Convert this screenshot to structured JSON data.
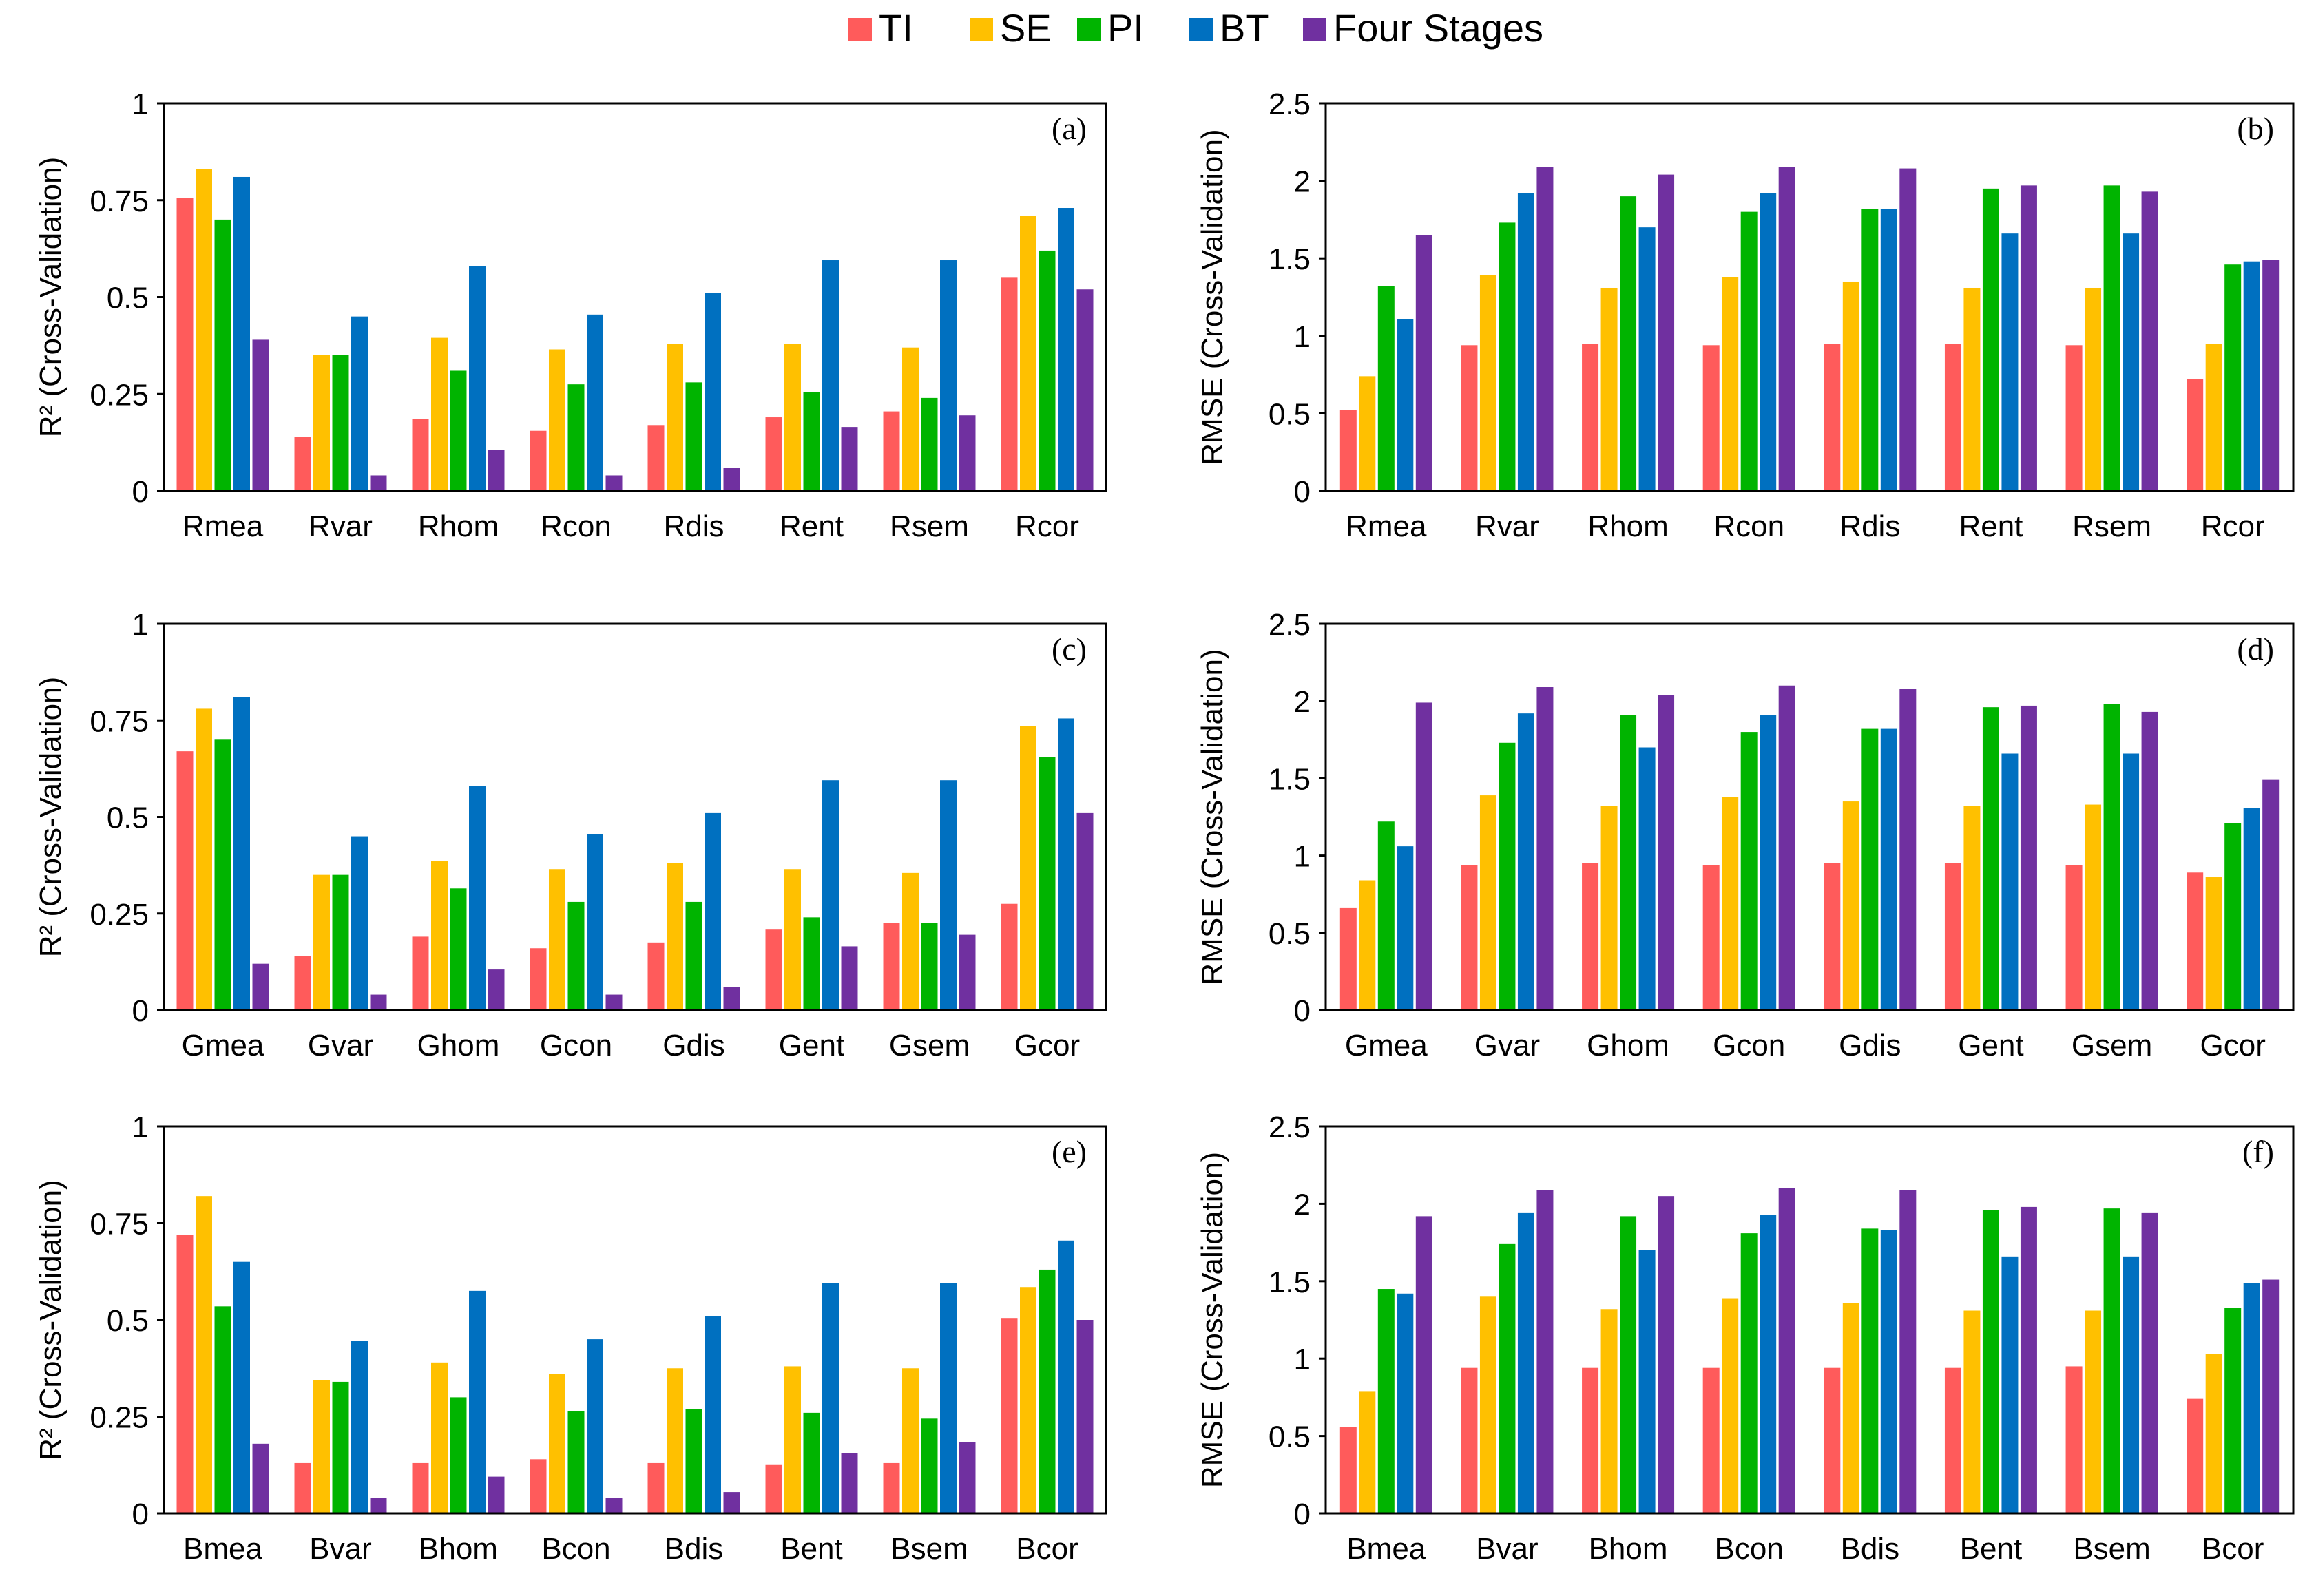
{
  "legend": {
    "placement": "top-center",
    "items": [
      {
        "label": "TI",
        "color": "#FF5B5B"
      },
      {
        "label": "SE",
        "color": "#FFC000"
      },
      {
        "label": "PI",
        "color": "#00B400"
      },
      {
        "label": "BT",
        "color": "#0070C0"
      },
      {
        "label": "Four Stages",
        "color": "#7030A0"
      }
    ]
  },
  "chart_data": [
    {
      "type": "bar",
      "panel_label": "(a)",
      "ylabel": "R² (Cross-Validation)",
      "ylim": [
        0,
        1
      ],
      "yticks": [
        0,
        0.25,
        0.5,
        0.75,
        1
      ],
      "ytick_labels": [
        "0",
        "0.25",
        "0.5",
        "0.75",
        "1"
      ],
      "categories": [
        "Rmea",
        "Rvar",
        "Rhom",
        "Rcon",
        "Rdis",
        "Rent",
        "Rsem",
        "Rcor"
      ],
      "series": [
        {
          "name": "TI",
          "values": [
            0.755,
            0.14,
            0.185,
            0.155,
            0.17,
            0.19,
            0.205,
            0.55
          ]
        },
        {
          "name": "SE",
          "values": [
            0.83,
            0.35,
            0.395,
            0.365,
            0.38,
            0.38,
            0.37,
            0.71
          ]
        },
        {
          "name": "PI",
          "values": [
            0.7,
            0.35,
            0.31,
            0.275,
            0.28,
            0.255,
            0.24,
            0.62
          ]
        },
        {
          "name": "BT",
          "values": [
            0.81,
            0.45,
            0.58,
            0.455,
            0.51,
            0.595,
            0.595,
            0.73
          ]
        },
        {
          "name": "Four Stages",
          "values": [
            0.39,
            0.04,
            0.105,
            0.04,
            0.06,
            0.165,
            0.195,
            0.52
          ]
        }
      ]
    },
    {
      "type": "bar",
      "panel_label": "(b)",
      "ylabel": "RMSE (Cross-Validation)",
      "ylim": [
        0,
        2.5
      ],
      "yticks": [
        0,
        0.5,
        1,
        1.5,
        2,
        2.5
      ],
      "ytick_labels": [
        "0",
        "0.5",
        "1",
        "1.5",
        "2",
        "2.5"
      ],
      "categories": [
        "Rmea",
        "Rvar",
        "Rhom",
        "Rcon",
        "Rdis",
        "Rent",
        "Rsem",
        "Rcor"
      ],
      "series": [
        {
          "name": "TI",
          "values": [
            0.52,
            0.94,
            0.95,
            0.94,
            0.95,
            0.95,
            0.94,
            0.72
          ]
        },
        {
          "name": "SE",
          "values": [
            0.74,
            1.39,
            1.31,
            1.38,
            1.35,
            1.31,
            1.31,
            0.95
          ]
        },
        {
          "name": "PI",
          "values": [
            1.32,
            1.73,
            1.9,
            1.8,
            1.82,
            1.95,
            1.97,
            1.46
          ]
        },
        {
          "name": "BT",
          "values": [
            1.11,
            1.92,
            1.7,
            1.92,
            1.82,
            1.66,
            1.66,
            1.48
          ]
        },
        {
          "name": "Four Stages",
          "values": [
            1.65,
            2.09,
            2.04,
            2.09,
            2.08,
            1.97,
            1.93,
            1.49
          ]
        }
      ]
    },
    {
      "type": "bar",
      "panel_label": "(c)",
      "ylabel": "R² (Cross-Validation)",
      "ylim": [
        0,
        1
      ],
      "yticks": [
        0,
        0.25,
        0.5,
        0.75,
        1
      ],
      "ytick_labels": [
        "0",
        "0.25",
        "0.5",
        "0.75",
        "1"
      ],
      "categories": [
        "Gmea",
        "Gvar",
        "Ghom",
        "Gcon",
        "Gdis",
        "Gent",
        "Gsem",
        "Gcor"
      ],
      "series": [
        {
          "name": "TI",
          "values": [
            0.67,
            0.14,
            0.19,
            0.16,
            0.175,
            0.21,
            0.225,
            0.275
          ]
        },
        {
          "name": "SE",
          "values": [
            0.78,
            0.35,
            0.385,
            0.365,
            0.38,
            0.365,
            0.355,
            0.735
          ]
        },
        {
          "name": "PI",
          "values": [
            0.7,
            0.35,
            0.315,
            0.28,
            0.28,
            0.24,
            0.225,
            0.655
          ]
        },
        {
          "name": "BT",
          "values": [
            0.81,
            0.45,
            0.58,
            0.455,
            0.51,
            0.595,
            0.595,
            0.755
          ]
        },
        {
          "name": "Four Stages",
          "values": [
            0.12,
            0.04,
            0.105,
            0.04,
            0.06,
            0.165,
            0.195,
            0.51
          ]
        }
      ]
    },
    {
      "type": "bar",
      "panel_label": "(d)",
      "ylabel": "RMSE (Cross-Validation)",
      "ylim": [
        0,
        2.5
      ],
      "yticks": [
        0,
        0.5,
        1,
        1.5,
        2,
        2.5
      ],
      "ytick_labels": [
        "0",
        "0.5",
        "1",
        "1.5",
        "2",
        "2.5"
      ],
      "categories": [
        "Gmea",
        "Gvar",
        "Ghom",
        "Gcon",
        "Gdis",
        "Gent",
        "Gsem",
        "Gcor"
      ],
      "series": [
        {
          "name": "TI",
          "values": [
            0.66,
            0.94,
            0.95,
            0.94,
            0.95,
            0.95,
            0.94,
            0.89
          ]
        },
        {
          "name": "SE",
          "values": [
            0.84,
            1.39,
            1.32,
            1.38,
            1.35,
            1.32,
            1.33,
            0.86
          ]
        },
        {
          "name": "PI",
          "values": [
            1.22,
            1.73,
            1.91,
            1.8,
            1.82,
            1.96,
            1.98,
            1.21
          ]
        },
        {
          "name": "BT",
          "values": [
            1.06,
            1.92,
            1.7,
            1.91,
            1.82,
            1.66,
            1.66,
            1.31
          ]
        },
        {
          "name": "Four Stages",
          "values": [
            1.99,
            2.09,
            2.04,
            2.1,
            2.08,
            1.97,
            1.93,
            1.49
          ]
        }
      ]
    },
    {
      "type": "bar",
      "panel_label": "(e)",
      "ylabel": "R² (Cross-Validation)",
      "ylim": [
        0,
        1
      ],
      "yticks": [
        0,
        0.25,
        0.5,
        0.75,
        1
      ],
      "ytick_labels": [
        "0",
        "0.25",
        "0.5",
        "0.75",
        "1"
      ],
      "categories": [
        "Bmea",
        "Bvar",
        "Bhom",
        "Bcon",
        "Bdis",
        "Bent",
        "Bsem",
        "Bcor"
      ],
      "series": [
        {
          "name": "TI",
          "values": [
            0.72,
            0.13,
            0.13,
            0.14,
            0.13,
            0.125,
            0.13,
            0.505
          ]
        },
        {
          "name": "SE",
          "values": [
            0.82,
            0.345,
            0.39,
            0.36,
            0.375,
            0.38,
            0.375,
            0.585
          ]
        },
        {
          "name": "PI",
          "values": [
            0.535,
            0.34,
            0.3,
            0.265,
            0.27,
            0.26,
            0.245,
            0.63
          ]
        },
        {
          "name": "BT",
          "values": [
            0.65,
            0.445,
            0.575,
            0.45,
            0.51,
            0.595,
            0.595,
            0.705
          ]
        },
        {
          "name": "Four Stages",
          "values": [
            0.18,
            0.04,
            0.095,
            0.04,
            0.055,
            0.155,
            0.185,
            0.5
          ]
        }
      ]
    },
    {
      "type": "bar",
      "panel_label": "(f)",
      "ylabel": "RMSE (Cross-Validation)",
      "ylim": [
        0,
        2.5
      ],
      "yticks": [
        0,
        0.5,
        1,
        1.5,
        2,
        2.5
      ],
      "ytick_labels": [
        "0",
        "0.5",
        "1",
        "1.5",
        "2",
        "2.5"
      ],
      "categories": [
        "Bmea",
        "Bvar",
        "Bhom",
        "Bcon",
        "Bdis",
        "Bent",
        "Bsem",
        "Bcor"
      ],
      "series": [
        {
          "name": "TI",
          "values": [
            0.56,
            0.94,
            0.94,
            0.94,
            0.94,
            0.94,
            0.95,
            0.74
          ]
        },
        {
          "name": "SE",
          "values": [
            0.79,
            1.4,
            1.32,
            1.39,
            1.36,
            1.31,
            1.31,
            1.03
          ]
        },
        {
          "name": "PI",
          "values": [
            1.45,
            1.74,
            1.92,
            1.81,
            1.84,
            1.96,
            1.97,
            1.33
          ]
        },
        {
          "name": "BT",
          "values": [
            1.42,
            1.94,
            1.7,
            1.93,
            1.83,
            1.66,
            1.66,
            1.49
          ]
        },
        {
          "name": "Four Stages",
          "values": [
            1.92,
            2.09,
            2.05,
            2.1,
            2.09,
            1.98,
            1.94,
            1.51
          ]
        }
      ]
    }
  ]
}
